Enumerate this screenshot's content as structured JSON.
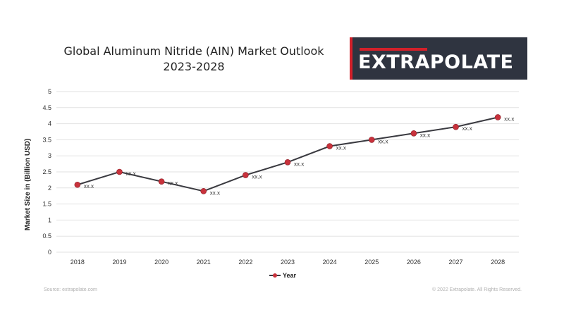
{
  "header": {
    "title_line1": "Global Aluminum Nitride (AIN) Market Outlook",
    "title_line2": "2023-2028",
    "logo_text": "EXTRAPOLATE"
  },
  "footer": {
    "source": "Source: extrapolate.com",
    "copyright": "© 2022  Extrapolate. All Rights Reserved."
  },
  "colors": {
    "line": "#3a3a40",
    "marker": "#c8323c",
    "grid": "#e2e2e2",
    "brand_dark": "#2f3440",
    "brand_red": "#d3202a"
  },
  "chart_data": {
    "type": "line",
    "categories": [
      "2018",
      "2019",
      "2020",
      "2021",
      "2022",
      "2023",
      "2024",
      "2025",
      "2026",
      "2027",
      "2028"
    ],
    "series": [
      {
        "name": "Year",
        "values": [
          2.1,
          2.5,
          2.2,
          1.9,
          2.4,
          2.8,
          3.3,
          3.5,
          3.7,
          3.9,
          4.2
        ]
      }
    ],
    "data_labels": [
      "xx.x",
      "xx.x",
      "xx.x",
      "xx.x",
      "xx.x",
      "xx.x",
      "xx.x",
      "xx.x",
      "xx.x",
      "xx.x",
      "xx.x"
    ],
    "ylabel": "Market Size in (Billion USD)",
    "xlabel": "",
    "ylim": [
      0,
      5
    ],
    "yticks": [
      "0",
      "0.5",
      "1",
      "1.5",
      "2",
      "2.5",
      "3",
      "3.5",
      "4",
      "4.5",
      "5"
    ],
    "grid": true,
    "legend_position": "bottom-center"
  }
}
